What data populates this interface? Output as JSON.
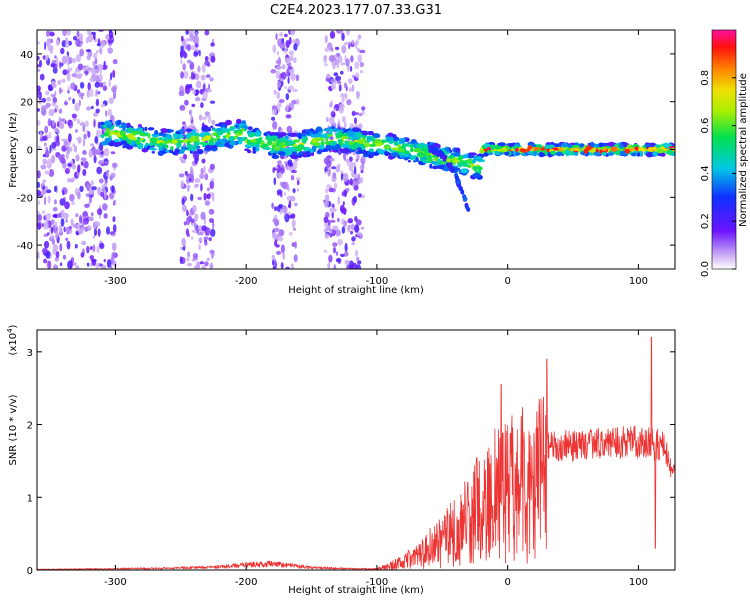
{
  "title": "C2E4.2023.177.07.33.G31",
  "colorbar": {
    "label": "Normalized spectral amplitude",
    "ticks": [
      "0.0",
      "0.2",
      "0.4",
      "0.6",
      "0.8"
    ],
    "tick_values": [
      0.0,
      0.2,
      0.4,
      0.6,
      0.8
    ],
    "range": [
      0,
      1
    ]
  },
  "chart_data": [
    {
      "type": "heatmap",
      "xlabel": "Height of straight line (km)",
      "ylabel": "Frequency (Hz)",
      "xlim": [
        -360,
        128
      ],
      "ylim": [
        -50,
        50
      ],
      "xticks": [
        -300,
        -200,
        -100,
        0,
        100
      ],
      "yticks": [
        -40,
        -20,
        0,
        20,
        40
      ],
      "colormap": "rainbow (magenta-red high, purple low)",
      "features": {
        "spectral_band_center_hz": 0,
        "spectral_band_halfwidth_hz": 4,
        "noise_columns_km": [
          [
            -360,
            -300
          ],
          [
            -250,
            -225
          ],
          [
            -180,
            -160
          ],
          [
            -140,
            -110
          ]
        ],
        "downward_branch": {
          "x_km": [
            -60,
            -30
          ],
          "y_hz": [
            0,
            -25
          ]
        }
      }
    },
    {
      "type": "line",
      "xlabel": "Height of straight line (km)",
      "ylabel": "SNR (10 * v/v)",
      "yscale_label": "(x10",
      "yscale_exponent": "4",
      "xlim": [
        -360,
        128
      ],
      "ylim": [
        0,
        3.3
      ],
      "xticks": [
        -300,
        -200,
        -100,
        0,
        100
      ],
      "yticks": [
        0,
        1,
        2,
        3
      ],
      "color": "#ee3333",
      "envelope": {
        "x": [
          -360,
          -300,
          -260,
          -220,
          -200,
          -180,
          -150,
          -120,
          -100,
          -90,
          -80,
          -70,
          -60,
          -50,
          -40,
          -30,
          -20,
          -10,
          0,
          10,
          20,
          30,
          40,
          50,
          60,
          70,
          80,
          90,
          100,
          110,
          120,
          125,
          128
        ],
        "y": [
          0.01,
          0.02,
          0.03,
          0.05,
          0.08,
          0.1,
          0.04,
          0.02,
          0.02,
          0.08,
          0.15,
          0.25,
          0.4,
          0.55,
          0.75,
          1.0,
          1.2,
          1.4,
          1.5,
          1.6,
          1.7,
          1.75,
          1.75,
          1.75,
          1.75,
          1.78,
          1.8,
          1.8,
          1.8,
          1.78,
          1.75,
          1.35,
          1.4
        ]
      },
      "peaks": {
        "x": [
          -5,
          30,
          110,
          113
        ],
        "y": [
          2.55,
          2.9,
          3.2,
          0.3
        ]
      }
    }
  ]
}
